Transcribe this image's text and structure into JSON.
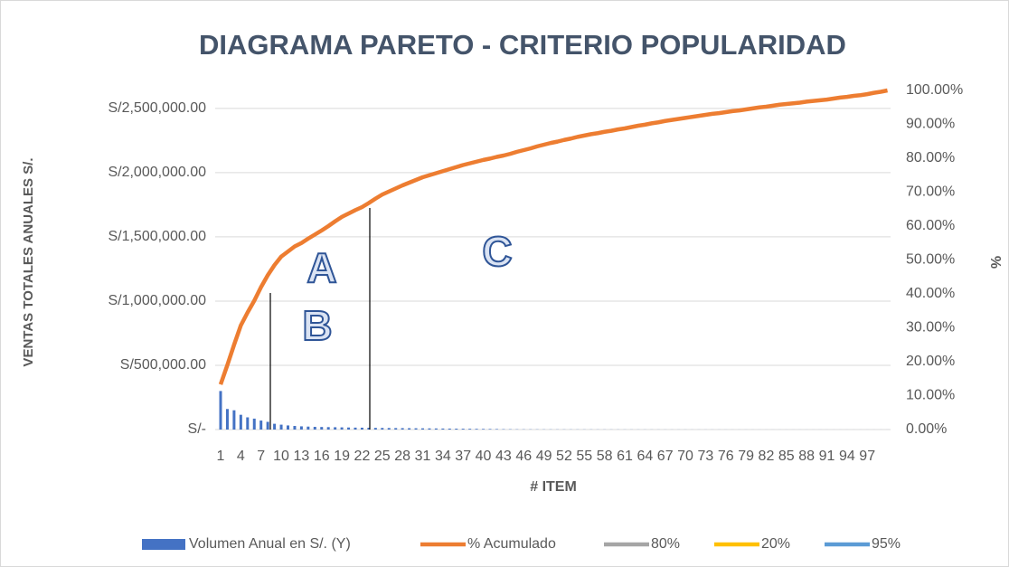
{
  "chart_data": {
    "type": "pareto",
    "title": "DIAGRAMA PARETO - CRITERIO POPULARIDAD",
    "x_label": "# ITEM",
    "y_label": "VENTAS TOTALES ANUALES S/.",
    "y2_label": "%",
    "annotations": [
      "A",
      "B",
      "C"
    ],
    "categories": [
      1,
      null,
      null,
      4,
      null,
      null,
      7,
      null,
      null,
      10,
      null,
      null,
      13,
      null,
      null,
      16,
      null,
      null,
      19,
      null,
      null,
      22,
      null,
      null,
      25,
      null,
      null,
      28,
      null,
      null,
      31,
      null,
      null,
      34,
      null,
      null,
      37,
      null,
      null,
      40,
      null,
      null,
      43,
      null,
      null,
      46,
      null,
      null,
      49,
      null,
      null,
      52,
      null,
      null,
      55,
      null,
      null,
      58,
      null,
      null,
      61,
      null,
      null,
      64,
      null,
      null,
      67,
      null,
      null,
      70,
      null,
      null,
      73,
      null,
      null,
      76,
      null,
      null,
      79,
      null,
      null,
      82,
      null,
      null,
      85,
      null,
      null,
      88,
      null,
      null,
      91,
      null,
      null,
      94,
      null,
      null,
      97,
      null,
      null,
      null
    ],
    "series": [
      {
        "name": "Volumen Anual en S/. (Y)",
        "color": "#4472c4",
        "kind": "bar",
        "values": [
          300000,
          160000,
          150000,
          115000,
          95000,
          85000,
          70000,
          60000,
          45000,
          38000,
          32000,
          28000,
          25000,
          23000,
          21000,
          20000,
          19000,
          18000,
          17000,
          16000,
          15000,
          14500,
          14000,
          13000,
          12500,
          12000,
          11500,
          11000,
          10500,
          10000,
          9500,
          9000,
          8500,
          8000,
          7500,
          7000,
          6500,
          6000,
          5500,
          5000,
          4500,
          4000,
          3000,
          2500,
          2000,
          1800,
          1600,
          1500,
          1400,
          1300,
          1200,
          1200,
          1100,
          1100,
          1000,
          1000,
          900,
          900,
          800,
          800,
          700,
          700,
          700,
          600,
          600,
          600,
          500,
          500,
          500,
          500,
          400,
          400,
          400,
          400,
          400,
          300,
          300,
          300,
          300,
          300,
          200,
          200,
          200,
          200,
          200,
          200,
          200,
          200,
          200,
          200,
          100,
          100,
          100,
          100,
          100,
          100,
          100,
          100,
          100,
          100
        ]
      },
      {
        "name": "% Acumulado",
        "color": "#ed7d31",
        "kind": "line",
        "axis": "y2",
        "values": [
          13.3,
          19,
          25,
          30.7,
          34.5,
          38,
          42,
          45.5,
          48.5,
          51,
          52.5,
          54,
          55,
          56.3,
          57.5,
          58.7,
          60,
          61.4,
          62.7,
          63.7,
          64.7,
          65.6,
          66.8,
          68.1,
          69.3,
          70.2,
          71.1,
          72,
          72.8,
          73.6,
          74.4,
          75,
          75.6,
          76.2,
          76.8,
          77.4,
          78,
          78.5,
          79,
          79.5,
          79.9,
          80.4,
          80.8,
          81.3,
          81.9,
          82.4,
          82.9,
          83.5,
          84,
          84.5,
          84.9,
          85.4,
          85.8,
          86.3,
          86.7,
          87.1,
          87.4,
          87.8,
          88.1,
          88.5,
          88.8,
          89.2,
          89.6,
          89.9,
          90.3,
          90.6,
          91,
          91.3,
          91.6,
          91.9,
          92.2,
          92.5,
          92.8,
          93.1,
          93.3,
          93.6,
          93.9,
          94.1,
          94.4,
          94.7,
          95,
          95.2,
          95.5,
          95.8,
          96,
          96.2,
          96.4,
          96.7,
          96.9,
          97.1,
          97.3,
          97.6,
          97.9,
          98.1,
          98.4,
          98.6,
          98.9,
          99.3,
          99.6,
          100
        ]
      },
      {
        "name": "80%",
        "color": "#a5a5a5",
        "kind": "line"
      },
      {
        "name": "20%",
        "color": "#ffc000",
        "kind": "line"
      },
      {
        "name": "95%",
        "color": "#5b9bd5",
        "kind": "line"
      }
    ],
    "ylim": [
      0,
      2640000
    ],
    "yticks": [
      {
        "value": 0,
        "label": "S/-"
      },
      {
        "value": 500000,
        "label": "S/500,000.00"
      },
      {
        "value": 1000000,
        "label": "S/1,000,000.00"
      },
      {
        "value": 1500000,
        "label": "S/1,500,000.00"
      },
      {
        "value": 2000000,
        "label": "S/2,000,000.00"
      },
      {
        "value": 2500000,
        "label": "S/2,500,000.00"
      }
    ],
    "y2lim": [
      0,
      100
    ],
    "y2ticks": [
      {
        "value": 0,
        "label": "0.00%"
      },
      {
        "value": 10,
        "label": "10.00%"
      },
      {
        "value": 20,
        "label": "20.00%"
      },
      {
        "value": 30,
        "label": "30.00%"
      },
      {
        "value": 40,
        "label": "40.00%"
      },
      {
        "value": 50,
        "label": "50.00%"
      },
      {
        "value": 60,
        "label": "60.00%"
      },
      {
        "value": 70,
        "label": "70.00%"
      },
      {
        "value": 80,
        "label": "80.00%"
      },
      {
        "value": 90,
        "label": "90.00%"
      },
      {
        "value": 100,
        "label": "100.00%"
      }
    ],
    "grid": true,
    "legend": "bottom"
  }
}
